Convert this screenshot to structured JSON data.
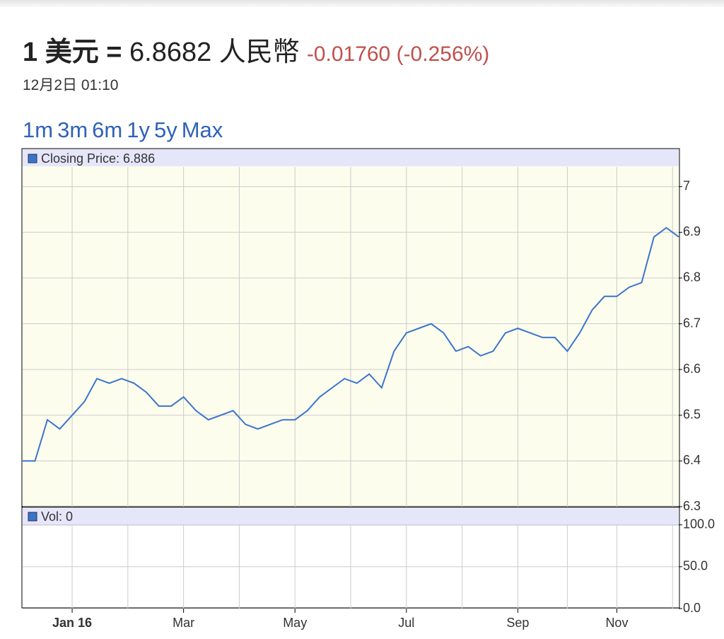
{
  "header": {
    "base": "1 美元 =",
    "rate": "6.8682 人民幣",
    "change": "-0.01760 (-0.256%)",
    "time": "12月2日 01:10"
  },
  "ranges": [
    "1m",
    "3m",
    "6m",
    "1y",
    "5y",
    "Max"
  ],
  "chart_data": [
    {
      "type": "line",
      "categories": [
        null,
        null,
        null,
        null,
        "Jan 16",
        null,
        null,
        null,
        null,
        null,
        null,
        null,
        null,
        "Mar",
        null,
        null,
        null,
        null,
        null,
        null,
        null,
        null,
        "May",
        null,
        null,
        null,
        null,
        null,
        null,
        null,
        null,
        "Jul",
        null,
        null,
        null,
        null,
        null,
        null,
        null,
        null,
        "Sep",
        null,
        null,
        null,
        null,
        null,
        null,
        null,
        "Nov",
        null,
        null,
        null,
        null,
        null
      ],
      "series": [
        {
          "name": "Closing Price: 6.886",
          "color": "#3b74cc",
          "values": [
            6.4,
            6.4,
            6.49,
            6.47,
            6.5,
            6.53,
            6.58,
            6.57,
            6.58,
            6.57,
            6.55,
            6.52,
            6.52,
            6.54,
            6.51,
            6.49,
            6.5,
            6.51,
            6.48,
            6.47,
            6.48,
            6.49,
            6.49,
            6.51,
            6.54,
            6.56,
            6.58,
            6.57,
            6.59,
            6.56,
            6.64,
            6.68,
            6.69,
            6.7,
            6.68,
            6.64,
            6.65,
            6.63,
            6.64,
            6.68,
            6.69,
            6.68,
            6.67,
            6.67,
            6.64,
            6.68,
            6.73,
            6.76,
            6.76,
            6.78,
            6.79,
            6.89,
            6.91,
            6.89
          ]
        }
      ],
      "ylim": [
        6.3,
        7.08
      ],
      "yticks": [
        6.3,
        6.4,
        6.5,
        6.6,
        6.7,
        6.8,
        6.9,
        7
      ],
      "grid": true
    },
    {
      "type": "bar",
      "series": [
        {
          "name": "Vol: 0",
          "color": "#3b74cc",
          "values": []
        }
      ],
      "ylim": [
        0,
        120
      ],
      "yticks": [
        {
          "value": 0,
          "label": "0.0"
        },
        {
          "value": 50,
          "label": "50.0"
        },
        {
          "value": 100,
          "label": "100.0"
        }
      ],
      "grid": true
    }
  ]
}
